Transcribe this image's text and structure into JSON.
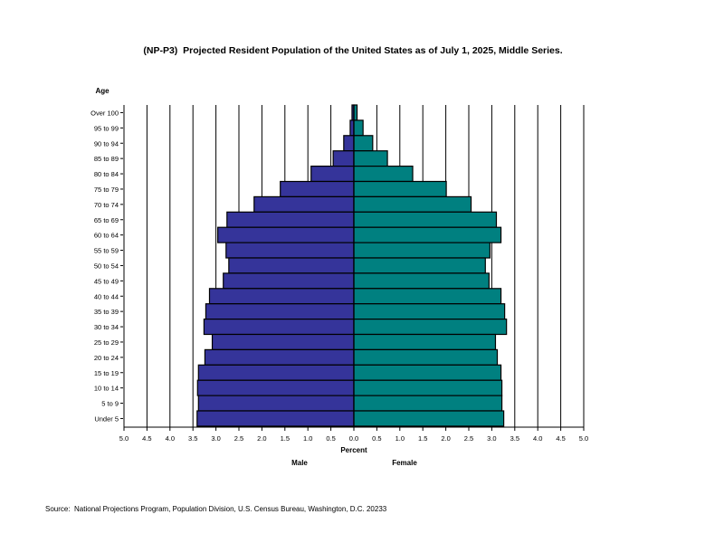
{
  "chart_data": {
    "type": "bar",
    "subtype": "population-pyramid",
    "title": "(NP-P3)  Projected Resident Population of the United States as of July 1, 2025, Middle Series.",
    "ylabel": "Age",
    "xlabel": "Percent",
    "xlim": [
      -5.0,
      5.0
    ],
    "x_ticks": [
      "5.0",
      "4.5",
      "4.0",
      "3.5",
      "3.0",
      "2.5",
      "2.0",
      "1.5",
      "1.0",
      "0.5",
      "0.0",
      "0.5",
      "1.0",
      "1.5",
      "2.0",
      "2.5",
      "3.0",
      "3.5",
      "4.0",
      "4.5",
      "5.0"
    ],
    "grid": true,
    "categories": [
      "Over 100",
      "95 to 99",
      "90 to 94",
      "85 to 89",
      "80 to 84",
      "75 to 79",
      "70 to 74",
      "65 to 69",
      "60 to 64",
      "55 to 59",
      "50 to 54",
      "45 to 49",
      "40 to 44",
      "35 to 39",
      "30 to 34",
      "25 to 29",
      "20 to 24",
      "15 to 19",
      "10 to 14",
      "5 to 9",
      "Under 5"
    ],
    "series": [
      {
        "name": "Male",
        "color": "#35349a",
        "side": "left",
        "values": [
          0.04,
          0.08,
          0.22,
          0.45,
          0.93,
          1.6,
          2.17,
          2.76,
          2.96,
          2.78,
          2.72,
          2.84,
          3.14,
          3.22,
          3.26,
          3.08,
          3.24,
          3.38,
          3.4,
          3.38,
          3.41
        ]
      },
      {
        "name": "Female",
        "color": "#008080",
        "side": "right",
        "values": [
          0.07,
          0.2,
          0.41,
          0.73,
          1.28,
          2.01,
          2.55,
          3.1,
          3.2,
          2.96,
          2.86,
          2.94,
          3.2,
          3.28,
          3.32,
          3.08,
          3.12,
          3.2,
          3.22,
          3.22,
          3.26
        ]
      }
    ],
    "source": "Source:  National Projections Program, Population Division, U.S. Census Bureau, Washington, D.C. 20233"
  }
}
